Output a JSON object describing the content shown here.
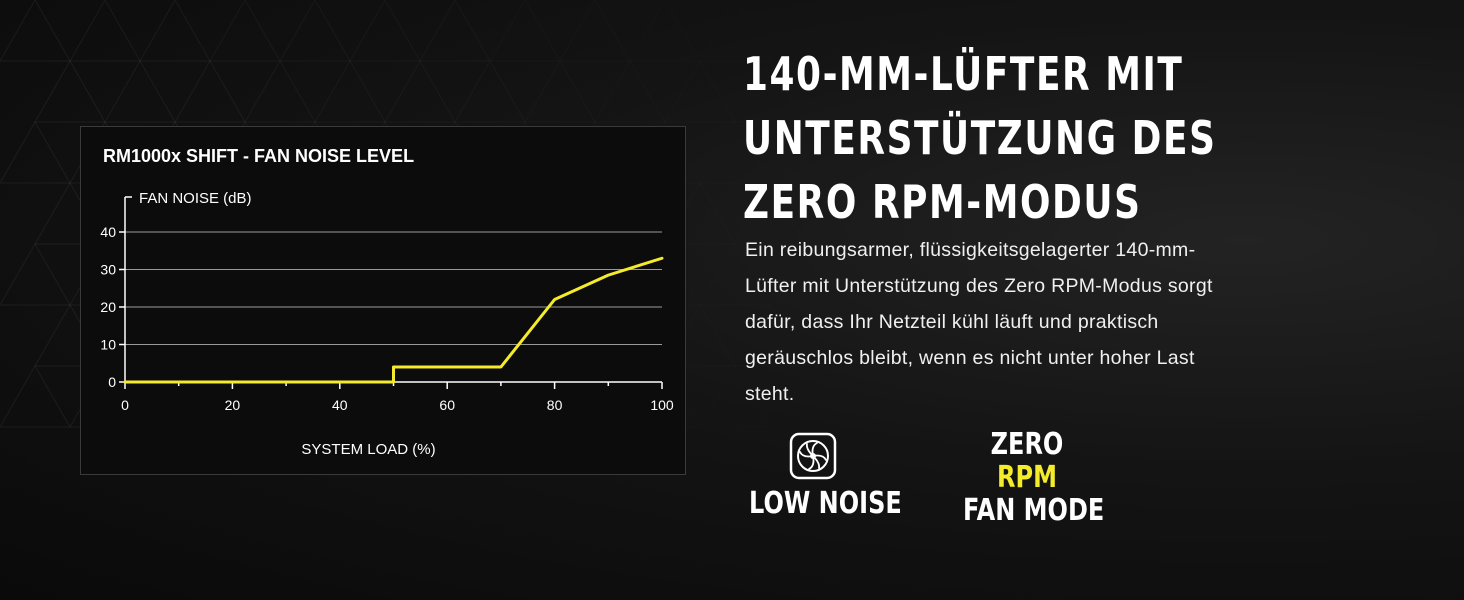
{
  "colors": {
    "accent": "#f4ec2a",
    "background": "#0f0f0f",
    "text": "#ffffff"
  },
  "headline": "140-mm-LÜFTER MIT UNTERSTÜTZUNG DES ZERO RPM-MODUS",
  "description": "Ein reibungsarmer, flüssigkeitsgelagerter 140-mm-Lüfter mit Unterstützung des Zero RPM-Modus sorgt dafür, dass Ihr Netzteil kühl läuft und praktisch geräuschlos bleibt, wenn es nicht unter hoher Last steht.",
  "features": {
    "low_noise": {
      "icon": "fan-icon",
      "label": "LOW NOISE"
    },
    "zero_rpm": {
      "line1": "ZERO",
      "line2": "RPM",
      "line3": "FAN MODE"
    }
  },
  "chart_data": {
    "type": "line",
    "title": "RM1000x SHIFT - FAN NOISE LEVEL",
    "xlabel": "SYSTEM LOAD (%)",
    "ylabel": "FAN NOISE (dB)",
    "xlim": [
      0,
      100
    ],
    "ylim": [
      0,
      40
    ],
    "xticks": [
      0,
      20,
      40,
      60,
      80,
      100
    ],
    "yticks": [
      0,
      10,
      20,
      30,
      40
    ],
    "grid": true,
    "series": [
      {
        "color": "#f4ec2a",
        "x": [
          0,
          50,
          50,
          70,
          80,
          90,
          100
        ],
        "y": [
          0,
          0,
          4,
          4,
          22,
          28.5,
          33
        ]
      }
    ]
  }
}
